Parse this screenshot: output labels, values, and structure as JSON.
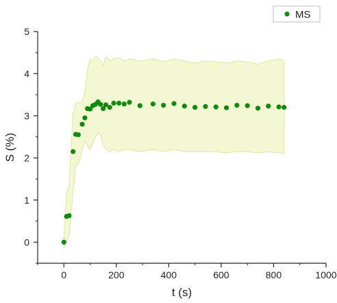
{
  "chart_data": {
    "type": "scatter",
    "title": "",
    "xlabel": "t (s)",
    "ylabel": "S (%)",
    "xlim": [
      -100,
      1000
    ],
    "ylim": [
      -0.5,
      5
    ],
    "x_ticks": [
      0,
      200,
      400,
      600,
      800,
      1000
    ],
    "y_ticks": [
      0,
      1,
      2,
      3,
      4,
      5
    ],
    "grid": false,
    "legend": {
      "position": "top-right",
      "entries": [
        "MS"
      ]
    },
    "colors": {
      "series": "#0e8a0e",
      "band_fill": "#f4f8d2",
      "band_edge": "#dbe7a3",
      "axis": "#222222"
    },
    "series": [
      {
        "name": "MS",
        "x": [
          0,
          10,
          20,
          35,
          45,
          55,
          70,
          80,
          90,
          100,
          110,
          120,
          130,
          140,
          150,
          160,
          175,
          190,
          210,
          230,
          250,
          290,
          340,
          380,
          420,
          460,
          500,
          540,
          580,
          620,
          660,
          700,
          740,
          780,
          820,
          840
        ],
        "y": [
          0.0,
          0.61,
          0.63,
          2.15,
          2.56,
          2.55,
          2.8,
          2.95,
          3.17,
          3.16,
          3.24,
          3.27,
          3.33,
          3.27,
          3.17,
          3.26,
          3.2,
          3.3,
          3.3,
          3.28,
          3.32,
          3.24,
          3.28,
          3.25,
          3.29,
          3.23,
          3.2,
          3.22,
          3.21,
          3.19,
          3.25,
          3.24,
          3.18,
          3.23,
          3.21,
          3.2
        ],
        "band": {
          "x": [
            0,
            10,
            20,
            35,
            45,
            55,
            70,
            80,
            90,
            100,
            110,
            120,
            130,
            140,
            150,
            160,
            175,
            190,
            210,
            230,
            250,
            290,
            340,
            380,
            420,
            460,
            500,
            540,
            580,
            620,
            660,
            700,
            740,
            780,
            820,
            840
          ],
          "upper": [
            0.15,
            1.15,
            1.35,
            3.05,
            3.3,
            3.3,
            3.35,
            3.55,
            4.1,
            4.35,
            4.3,
            4.4,
            4.38,
            4.3,
            4.2,
            4.4,
            4.3,
            4.35,
            4.38,
            4.3,
            4.35,
            4.3,
            4.35,
            4.28,
            4.35,
            4.3,
            4.25,
            4.3,
            4.28,
            4.25,
            4.3,
            4.28,
            4.22,
            4.3,
            4.35,
            4.3
          ],
          "lower": [
            -0.15,
            0.05,
            0.15,
            1.2,
            1.85,
            1.85,
            2.2,
            2.4,
            2.3,
            2.2,
            2.35,
            2.5,
            2.6,
            2.55,
            2.3,
            2.2,
            2.15,
            2.2,
            2.15,
            2.2,
            2.2,
            2.15,
            2.2,
            2.15,
            2.2,
            2.15,
            2.15,
            2.15,
            2.15,
            2.12,
            2.15,
            2.15,
            2.12,
            2.15,
            2.12,
            2.1
          ]
        }
      }
    ]
  }
}
